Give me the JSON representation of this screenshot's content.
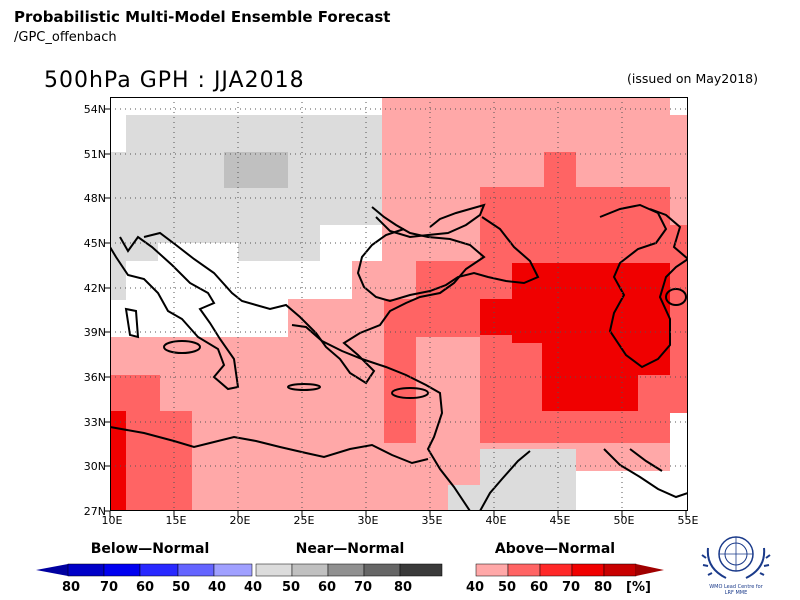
{
  "header": {
    "title": "Probabilistic Multi-Model Ensemble Forecast",
    "subtitle": "/GPC_offenbach"
  },
  "map": {
    "title": "500hPa GPH : JJA2018",
    "issued": "(issued on May2018)",
    "lat_labels": [
      "54N",
      "51N",
      "48N",
      "45N",
      "42N",
      "39N",
      "36N",
      "33N",
      "30N",
      "27N"
    ],
    "lon_labels": [
      "10E",
      "15E",
      "20E",
      "25E",
      "30E",
      "35E",
      "40E",
      "45E",
      "50E",
      "55E"
    ],
    "lat_range": [
      27,
      55
    ],
    "lon_range": [
      10,
      55
    ],
    "grid_dotted": true
  },
  "legend": {
    "below": {
      "title": "Below—Normal",
      "ticks": [
        "80",
        "70",
        "60",
        "50",
        "40"
      ],
      "colors": [
        "#0000c8",
        "#0000f0",
        "#2828ff",
        "#6464ff",
        "#a0a0ff"
      ]
    },
    "near": {
      "title": "Near—Normal",
      "ticks": [
        "40",
        "50",
        "60",
        "70",
        "80"
      ],
      "colors": [
        "#dcdcdc",
        "#c0c0c0",
        "#909090",
        "#666666",
        "#3a3a3a"
      ]
    },
    "above": {
      "title": "Above—Normal",
      "ticks": [
        "40",
        "50",
        "60",
        "70",
        "80"
      ],
      "unit": "[%]",
      "colors": [
        "#ffa8a8",
        "#ff6464",
        "#ff2828",
        "#f00000",
        "#c80000"
      ]
    }
  },
  "logo": {
    "line1": "WMO Lead Centre for",
    "line2": "LRF MME"
  }
}
